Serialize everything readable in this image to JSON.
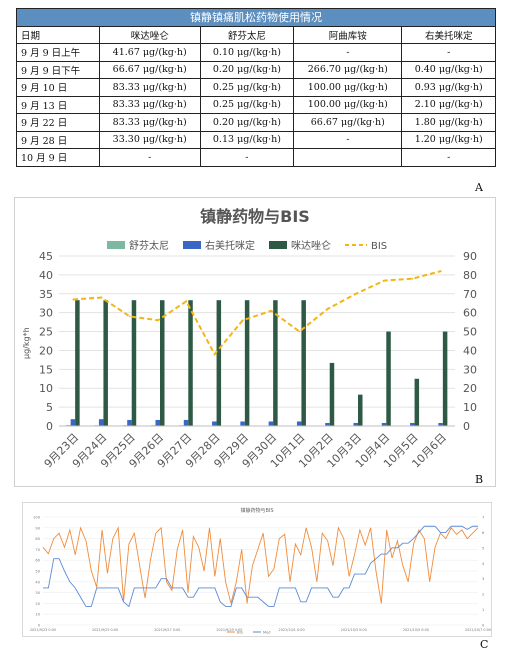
{
  "panel_a": {
    "label": "A",
    "title": "镇静镇痛肌松药物使用情况",
    "headers": [
      "日期",
      "咪达唑仑",
      "舒芬太尼",
      "阿曲库铵",
      "右美托咪定"
    ],
    "rows": [
      [
        "9 月 9 日上午",
        "41.67 μg/(kg·h)",
        "0.10 μg/(kg·h)",
        "-",
        "-"
      ],
      [
        "9 月 9 日下午",
        "66.67 μg/(kg·h)",
        "0.20 μg/(kg·h)",
        "266.70 μg/(kg·h)",
        "0.40 μg/(kg·h)"
      ],
      [
        "9 月 10 日",
        "83.33 μg/(kg·h)",
        "0.25 μg/(kg·h)",
        "100.00 μg/(kg·h)",
        "0.93 μg/(kg·h)"
      ],
      [
        "9 月 13 日",
        "83.33 μg/(kg·h)",
        "0.25 μg/(kg·h)",
        "100.00 μg/(kg·h)",
        "2.10 μg/(kg·h)"
      ],
      [
        "9 月 22 日",
        "83.33 μg/(kg·h)",
        "0.20 μg/(kg·h)",
        "66.67 μg/(kg·h)",
        "1.80 μg/(kg·h)"
      ],
      [
        "9 月 28 日",
        "33.30 μg/(kg·h)",
        "0.13 μg/(kg·h)",
        "-",
        "1.20 μg/(kg·h)"
      ],
      [
        "10 月 9 日",
        "-",
        "-",
        "",
        "-"
      ]
    ],
    "header_color": "#5c8fc0"
  },
  "chart_data": [
    {
      "panel_label": "B",
      "type": "bar",
      "title": "镇静药物与BIS",
      "ylabel": "μg/kg*h",
      "categories": [
        "9月23日",
        "9月24日",
        "9月25日",
        "9月26日",
        "9月27日",
        "9月28日",
        "9月29日",
        "9月30日",
        "10月1日",
        "10月2日",
        "10月3日",
        "10月4日",
        "10月5日",
        "10月6日"
      ],
      "y_ticks": [
        0,
        5,
        10,
        15,
        20,
        25,
        30,
        35,
        40,
        45
      ],
      "y2_ticks": [
        0,
        10,
        20,
        30,
        40,
        50,
        60,
        70,
        80,
        90
      ],
      "ylim": [
        0,
        45
      ],
      "y2lim": [
        0,
        90
      ],
      "legend_position": "top",
      "grid": true,
      "series": [
        {
          "name": "舒芬太尼",
          "axis": "left",
          "kind": "bar",
          "color": "#7fb8a2",
          "values": [
            0.25,
            0.2,
            0.2,
            0.2,
            0.2,
            0.13,
            0.13,
            0.13,
            0.13,
            0.13,
            0.1,
            0.1,
            0.1,
            0.1
          ]
        },
        {
          "name": "右美托咪定",
          "axis": "left",
          "kind": "bar",
          "color": "#3a66c4",
          "values": [
            1.8,
            1.8,
            1.6,
            1.6,
            1.6,
            1.2,
            1.2,
            1.2,
            1.2,
            0.8,
            0.8,
            0.8,
            0.8,
            0.8
          ]
        },
        {
          "name": "咪达唑仑",
          "axis": "left",
          "kind": "bar",
          "color": "#2e5a45",
          "values": [
            33.3,
            33.3,
            33.3,
            33.3,
            33.3,
            33.3,
            33.3,
            33.3,
            33.3,
            16.7,
            8.3,
            25,
            12.5,
            25
          ]
        },
        {
          "name": "BIS",
          "axis": "right",
          "kind": "line",
          "color": "#f2b614",
          "values": [
            67,
            68,
            58,
            56,
            66,
            38,
            56,
            61,
            50,
            62,
            70,
            77,
            78,
            82
          ]
        }
      ]
    },
    {
      "panel_label": "C",
      "type": "line",
      "title": "镇静药物与BIS",
      "ylim": [
        0,
        100
      ],
      "y2lim": [
        0,
        7
      ],
      "y_ticks": [
        0,
        10,
        20,
        30,
        40,
        50,
        60,
        70,
        80,
        90,
        100
      ],
      "y2_ticks": [
        0,
        1,
        2,
        3,
        4,
        5,
        6,
        7
      ],
      "x_ticks": [
        "2021/9/23 0:00",
        "2021/9/25 0:00",
        "2021/9/27 0:00",
        "2021/9/29 0:00",
        "2021/10/1 0:00",
        "2021/10/3 0:00",
        "2021/10/5 0:00",
        "2021/10/7 0:00"
      ],
      "legend_position": "bottom",
      "grid": true,
      "series": [
        {
          "name": "BIS",
          "axis": "left",
          "color": "#f08c3c",
          "values": [
            72,
            66,
            80,
            85,
            72,
            88,
            65,
            90,
            78,
            50,
            35,
            88,
            48,
            80,
            90,
            22,
            75,
            85,
            55,
            25,
            60,
            85,
            90,
            40,
            32,
            70,
            88,
            30,
            82,
            72,
            50,
            90,
            45,
            80,
            40,
            20,
            40,
            70,
            20,
            55,
            70,
            85,
            45,
            52,
            80,
            84,
            40,
            75,
            65,
            90,
            72,
            40,
            85,
            78,
            55,
            90,
            80,
            45,
            65,
            88,
            74,
            90,
            50,
            20,
            88,
            62,
            78,
            55,
            40,
            75,
            88,
            80,
            40,
            72,
            85,
            80,
            90,
            84,
            88,
            80,
            85,
            90
          ]
        },
        {
          "name": "Med",
          "axis": "right",
          "color": "#5b8ad6",
          "values": [
            2.4,
            2.4,
            4.3,
            4.3,
            3.5,
            2.8,
            2.4,
            1.8,
            1.2,
            1.2,
            2.4,
            2.4,
            2.4,
            2.4,
            2.4,
            1.5,
            1.2,
            2.4,
            2.4,
            2.4,
            2.4,
            2.4,
            3.0,
            3.0,
            2.4,
            2.4,
            2.4,
            1.8,
            1.8,
            2.4,
            2.4,
            2.4,
            2.4,
            1.5,
            1.2,
            1.2,
            2.4,
            2.4,
            1.8,
            1.8,
            1.8,
            1.5,
            1.2,
            1.2,
            2.4,
            2.4,
            2.4,
            2.4,
            1.5,
            1.5,
            2.4,
            2.4,
            2.4,
            2.4,
            1.8,
            1.8,
            2.4,
            2.4,
            3.3,
            3.3,
            3.3,
            4.0,
            4.3,
            4.6,
            4.6,
            5.0,
            5.0,
            5.3,
            5.3,
            5.6,
            6.0,
            6.4,
            6.4,
            6.4,
            6.0,
            6.0,
            6.4,
            6.4,
            6.4,
            6.2,
            6.4,
            6.4
          ]
        }
      ]
    }
  ]
}
